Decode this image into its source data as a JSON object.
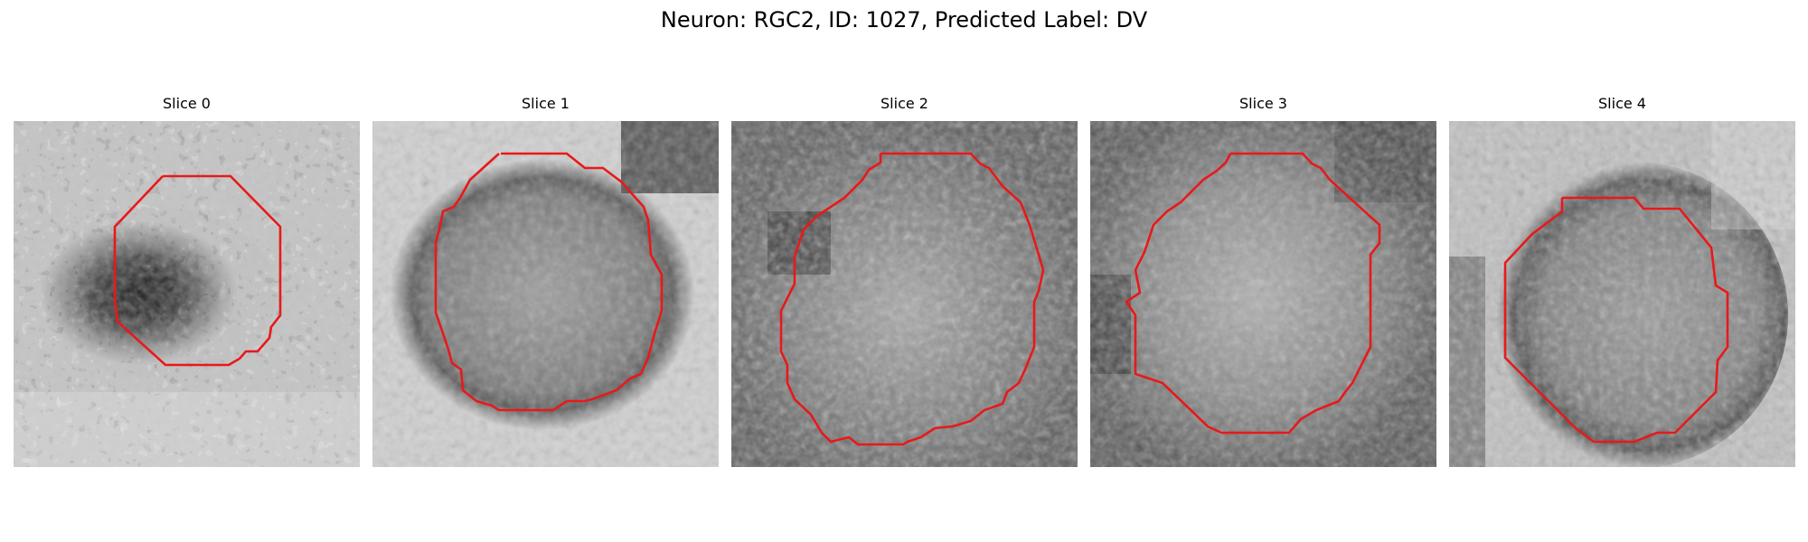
{
  "figure": {
    "title": "Neuron: RGC2, ID: 1027, Predicted Label: DV"
  },
  "panels": [
    {
      "title": "Slice 0"
    },
    {
      "title": "Slice 1"
    },
    {
      "title": "Slice 2"
    },
    {
      "title": "Slice 3"
    },
    {
      "title": "Slice 4"
    }
  ],
  "colors": {
    "contour": "#e8191a",
    "background": "#ffffff",
    "image_colormap": "gray"
  }
}
